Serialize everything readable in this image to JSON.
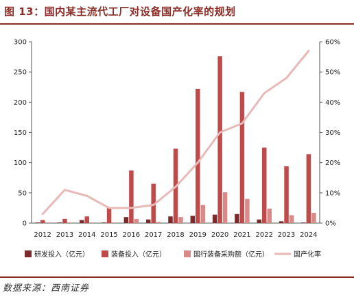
{
  "title": "图 13：国内某主流代工厂对设备国产化率的规划",
  "source": "数据来源：西南证券",
  "colors": {
    "title": "#8b2d27",
    "rnd": "#7b2b2b",
    "equipment": "#bf4a4a",
    "domestic_purchase": "#d98a88",
    "localization_rate": "#e7b9b7"
  },
  "chart_data": {
    "type": "bar",
    "categories": [
      "2012",
      "2013",
      "2014",
      "2015",
      "2016",
      "2017",
      "2018",
      "2019",
      "2020",
      "2021",
      "2022",
      "2023",
      "2024"
    ],
    "ylim_left": [
      0,
      300
    ],
    "yticks_left": [
      "0",
      "50",
      "100",
      "150",
      "200",
      "250",
      "300"
    ],
    "ylim_right": [
      0,
      60
    ],
    "yticks_right": [
      "0%",
      "10%",
      "20%",
      "30%",
      "40%",
      "50%",
      "60%"
    ],
    "grid": false,
    "legend_position": "bottom",
    "series": [
      {
        "name": "研发投入（亿元）",
        "type": "bar",
        "axis": "left",
        "values": [
          1,
          1,
          5,
          1,
          10,
          6,
          11,
          12,
          14,
          15,
          6,
          3,
          1
        ]
      },
      {
        "name": "装备投入（亿元）",
        "type": "bar",
        "axis": "left",
        "values": [
          5,
          7,
          11,
          25,
          87,
          65,
          123,
          222,
          276,
          217,
          125,
          94,
          114
        ]
      },
      {
        "name": "国行装备采购额（亿元）",
        "type": "bar",
        "axis": "left",
        "values": [
          1,
          1,
          1,
          1,
          7,
          2,
          10,
          30,
          51,
          40,
          24,
          13,
          17
        ]
      },
      {
        "name": "国产化率",
        "type": "line",
        "axis": "right",
        "values": [
          3,
          11,
          9,
          5,
          5,
          6,
          12,
          20,
          30,
          33,
          43,
          48,
          57
        ]
      }
    ]
  }
}
